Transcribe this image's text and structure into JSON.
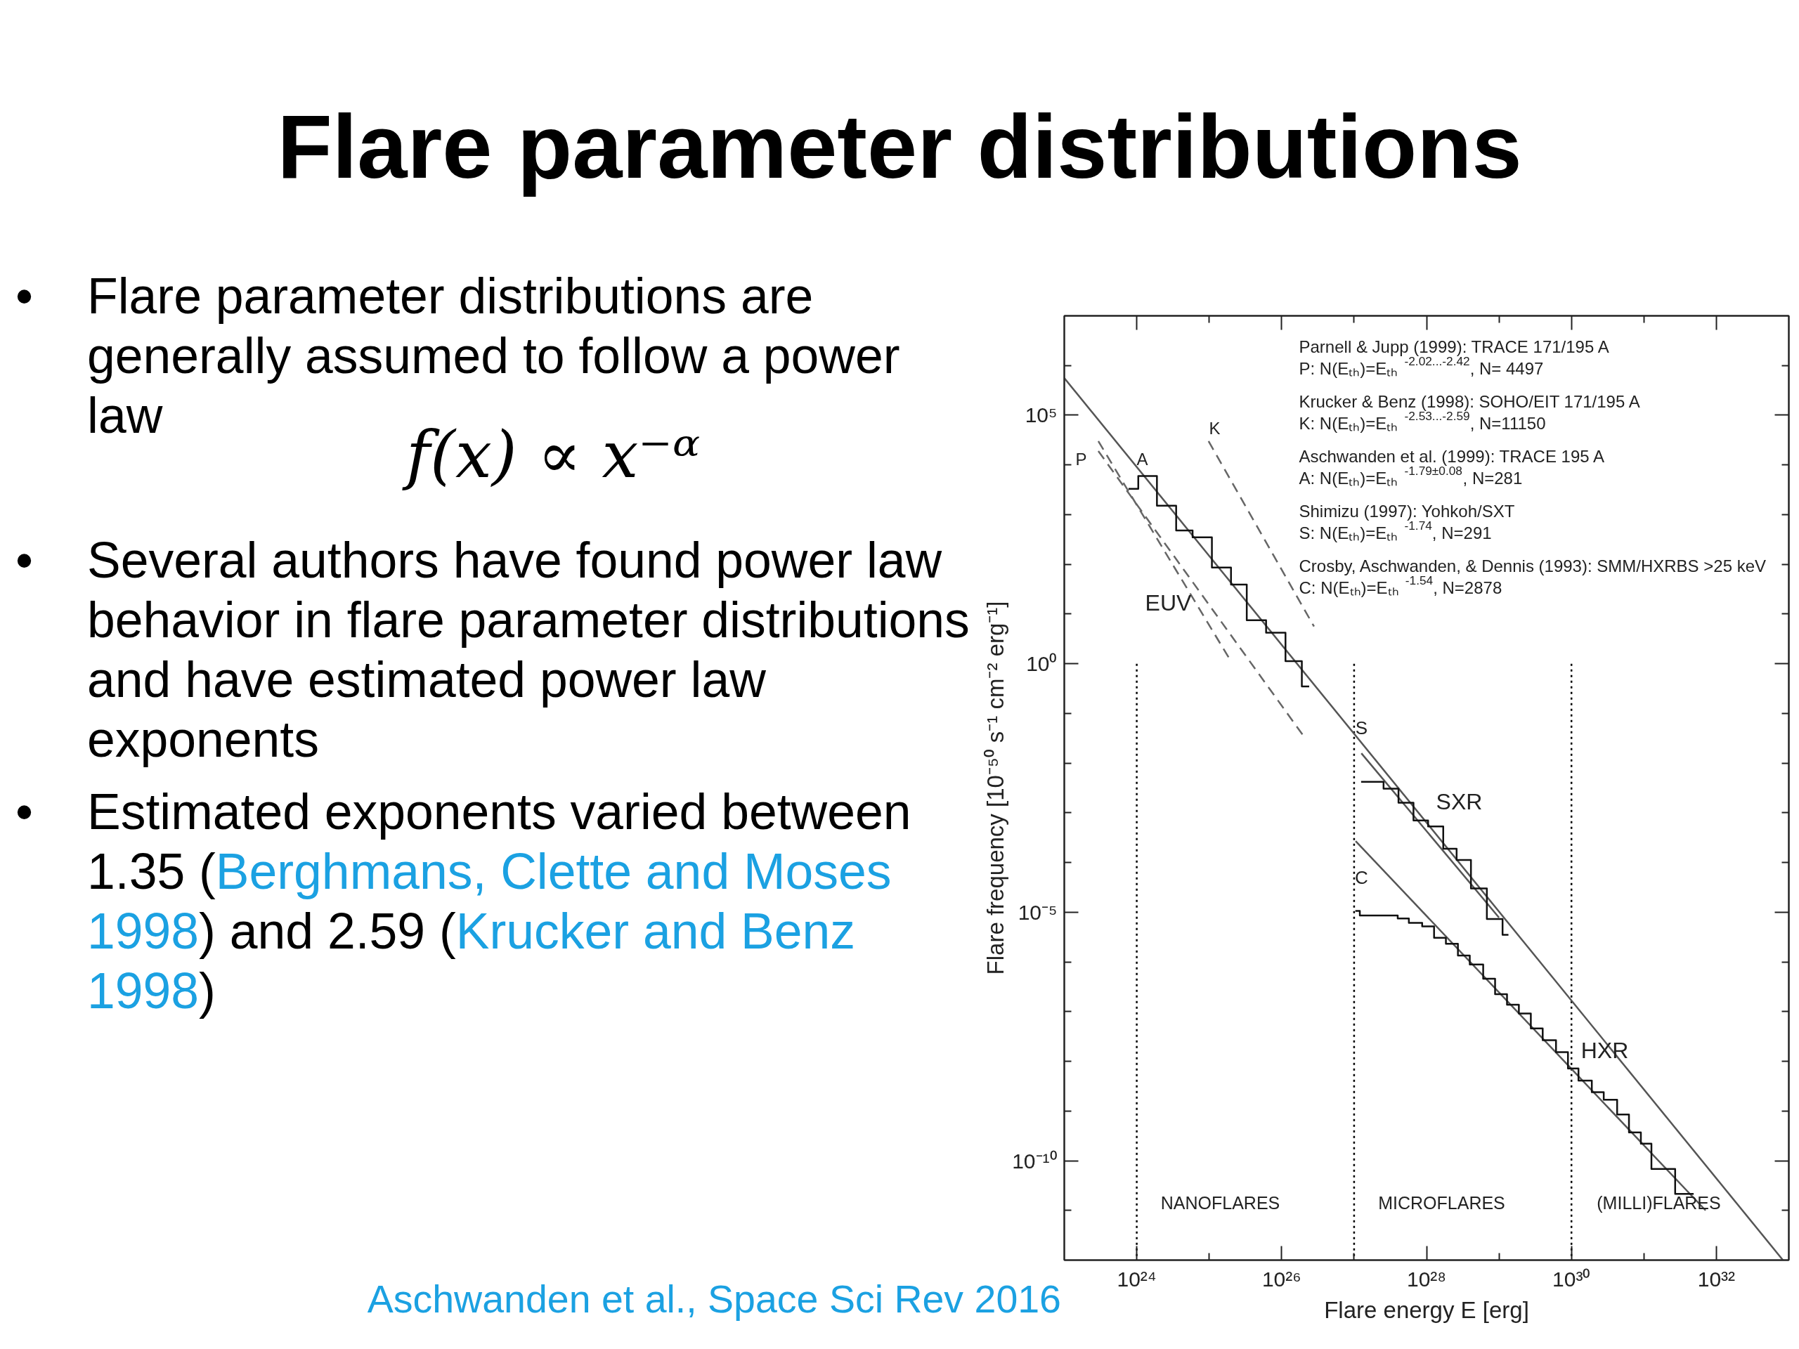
{
  "chart_data": {
    "type": "line",
    "title": "Flare parameter distributions",
    "xlabel": "Flare energy E [erg]",
    "ylabel": "Flare frequency [10⁻⁵⁰ s⁻¹ cm⁻² erg⁻¹]",
    "log": "xy",
    "xlim": [
      1e+23,
      1e+33
    ],
    "ylim": [
      1e-12,
      10000000.0
    ],
    "xticks": [
      {
        "value": 1e+24,
        "label": "10²⁴"
      },
      {
        "value": 1e+25,
        "label": null
      },
      {
        "value": 1e+26,
        "label": "10²⁶"
      },
      {
        "value": 1e+27,
        "label": null
      },
      {
        "value": 1e+28,
        "label": "10²⁸"
      },
      {
        "value": 1e+29,
        "label": null
      },
      {
        "value": 1e+30,
        "label": "10³⁰"
      },
      {
        "value": 1e+31,
        "label": null
      },
      {
        "value": 1e+32,
        "label": "10³²"
      }
    ],
    "yticks": [
      {
        "value": 1e-11,
        "label": null
      },
      {
        "value": 1e-10,
        "label": "10⁻¹⁰"
      },
      {
        "value": 1e-09,
        "label": null
      },
      {
        "value": 1e-08,
        "label": null
      },
      {
        "value": 1e-07,
        "label": null
      },
      {
        "value": 1e-06,
        "label": null
      },
      {
        "value": 1e-05,
        "label": "10⁻⁵"
      },
      {
        "value": 0.0001,
        "label": null
      },
      {
        "value": 0.001,
        "label": null
      },
      {
        "value": 0.01,
        "label": null
      },
      {
        "value": 0.1,
        "label": null
      },
      {
        "value": 1,
        "label": "10⁰"
      },
      {
        "value": 10,
        "label": null
      },
      {
        "value": 100,
        "label": null
      },
      {
        "value": 1000,
        "label": null
      },
      {
        "value": 10000,
        "label": null
      },
      {
        "value": 100000,
        "label": "10⁵"
      },
      {
        "value": 1000000,
        "label": null
      }
    ],
    "series": [
      {
        "line_style": "dotted",
        "color": "#000000",
        "x": [
          1e+24,
          1e+24
        ],
        "values": [
          1,
          1e-12
        ]
      },
      {
        "line_style": "dotted",
        "color": "#000000",
        "x": [
          1e+27,
          1e+27
        ],
        "values": [
          1,
          1e-12
        ]
      },
      {
        "line_style": "dotted",
        "color": "#000000",
        "x": [
          1e+30,
          1e+30
        ],
        "values": [
          1,
          1e-12
        ]
      },
      {
        "color": "#555555",
        "x": [
          1e+23,
          8.3e+32
        ],
        "values": [
          560000.0,
          1e-12
        ]
      },
      {
        "color": "#555555",
        "x": [
          1.26e+27,
          1e+29
        ],
        "values": [
          0.0158,
          7.8e-06
        ]
      },
      {
        "color": "#555555",
        "x": [
          1.05e+27,
          7.1e+31
        ],
        "values": [
          0.00027,
          1e-11
        ]
      },
      {
        "line_style": "dashed",
        "color": "#666666",
        "x": [
          2.95e+23,
          2.1e+26
        ],
        "values": [
          19000.0,
          0.032
        ]
      },
      {
        "line_style": "dashed",
        "color": "#666666",
        "x": [
          2.95e+23,
          1.86e+25
        ],
        "values": [
          30000.0,
          1.33
        ]
      },
      {
        "line_style": "dashed",
        "color": "#666666",
        "x": [
          9.8e+24,
          2.8e+26
        ],
        "values": [
          30000.0,
          5.6
        ]
      },
      {
        "type": "step",
        "color": "#111111",
        "x": [
          7.7e+23,
          1.05e+24,
          1.9e+24,
          3.5e+24,
          5.9e+24,
          1.09e+25,
          2e+25,
          3.3e+25,
          6.1e+25,
          1.13e+26,
          1.9e+26,
          2.4e+26
        ],
        "values": [
          3300,
          6000,
          1510,
          480,
          350,
          86,
          39,
          7.5,
          4.2,
          1.13,
          0.35,
          0.35
        ]
      },
      {
        "type": "step",
        "color": "#111111",
        "x": [
          1.25e+27,
          2.55e+27,
          4.1e+27,
          6.6e+27,
          1.05e+28,
          1.7e+28,
          2.6e+28,
          4.1e+28,
          6.8e+28,
          1.12e+29,
          1.35e+29
        ],
        "values": [
          0.0042,
          0.00305,
          0.0016,
          0.0007,
          0.00053,
          0.00019,
          0.000112,
          3e-05,
          7.3e-06,
          3.5e-06,
          3.5e-06
        ]
      },
      {
        "type": "step",
        "color": "#111111",
        "x": [
          1.04e+27,
          1.2e+27,
          4e+27,
          5.7e+27,
          8.7e+27,
          1.27e+28,
          1.85e+28,
          2.71e+28,
          3.95e+28,
          6.05e+28,
          8.83e+28,
          1.29e+29,
          1.88e+29,
          2.75e+29,
          4.01e+29,
          6.12e+29,
          8.95e+29,
          1.25e+30,
          1.91e+30,
          2.79e+30,
          4.27e+30,
          6.22e+30,
          9.08e+30,
          1.27e+31,
          2.7e+31,
          4.86e+31
        ],
        "values": [
          1.06e-05,
          8.6e-06,
          7.5e-06,
          6.1e-06,
          5.2e-06,
          3.06e-06,
          2.32e-06,
          1.34e-06,
          8.9e-07,
          4.6e-07,
          2.24e-07,
          1.38e-07,
          9.2e-08,
          4.6e-08,
          2.65e-08,
          1.53e-08,
          7.2e-09,
          4.1e-09,
          2.39e-09,
          1.69e-09,
          8.5e-10,
          3.7e-10,
          2.2e-10,
          6.8e-11,
          2.15e-11,
          2.15e-11
        ]
      }
    ],
    "annotations": [
      "• Flare parameter distributions are generally assumed to follow a power law",
      "f(x) ∝ x⁻ᵅ",
      "• Several authors have found power law behavior in flare parameter distributions and have estimated power law exponents",
      "• Estimated exponents varied between 1.35 (Berghmans, Clette and Moses 1998) and 2.59 (Krucker and Benz 1998)",
      "Parnell & Jupp (1999): TRACE 171/195 A\nP: N(Eₜₕ)=Eₜₕ$^{-2.02...-2.42}$, N= 4497",
      "Krucker & Benz (1998): SOHO/EIT 171/195 A\nK: N(Eₜₕ)=Eₜₕ$^{-2.53...-2.59}$, N=11150",
      "Aschwanden et al. (1999): TRACE 195 A\nA: N(Eₜₕ)=Eₜₕ$^{-1.79±0.08}$, N=281",
      "Shimizu (1997): Yohkoh/SXT\nS: N(Eₜₕ)=Eₜₕ$^{-1.74}$, N=291",
      "Crosby, Aschwanden, & Dennis (1993): SMM/HXRBS >25 keV\nC: N(Eₜₕ)=Eₜₕ$^{-1.54}$, N=2878",
      "Aschwanden et al., Space Sci Rev 2016",
      "P",
      "A",
      "K",
      "EUV",
      "S",
      "SXR",
      "C",
      "HXR",
      "NANOFLARES",
      "MICROFLARES",
      "(MILLI)FLARES"
    ]
  }
}
